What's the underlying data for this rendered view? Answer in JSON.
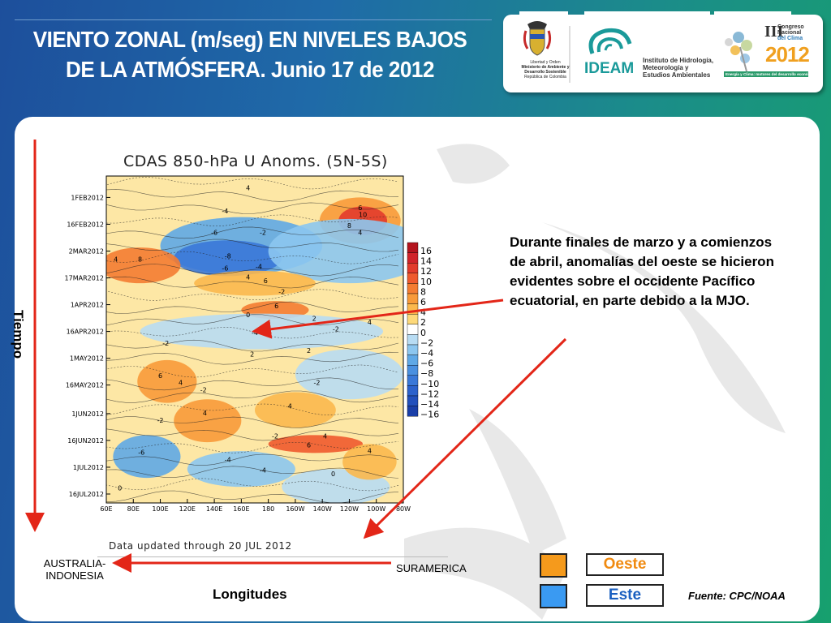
{
  "title_line1": "VIENTO ZONAL (m/seg) EN NIVELES BAJOS",
  "title_line2": "DE LA ATMÓSFERA. Junio 17 de 2012",
  "logos": {
    "ministry": [
      "Libertad y Orden",
      "Ministerio de Ambiente y",
      "Desarrollo Sostenible",
      "República de Colombia"
    ],
    "ideam_name": "IDEAM",
    "ideam_text": [
      "Instituto de Hidrología,",
      "Meteorología y",
      "Estudios Ambientales"
    ],
    "congreso_roman": "III",
    "congreso_text": [
      "Congreso",
      "Nacional",
      "del Clima"
    ],
    "congreso_year": "2012",
    "congreso_slogan": "Energía y Clima: motores del desarrollo económico"
  },
  "annotation": "Durante finales de marzo y a comienzos de abril, anomalías del oeste se hicieron evidentes  sobre el occidente Pacífico ecuatorial, en parte debido a la MJO.",
  "axis_labels": {
    "tiempo": "Tiempo",
    "longitudes": "Longitudes",
    "left_region": "AUSTRALIA-INDONESIA",
    "right_region": "SURAMERICA"
  },
  "legend": {
    "oeste": "Oeste",
    "este": "Este",
    "oeste_color": "#f59a1c",
    "este_color": "#3a9af2"
  },
  "source": "Fuente: CPC/NOAA",
  "chart_data": {
    "type": "heatmap",
    "title": "CDAS 850-hPa U Anoms. (5N-5S)",
    "footer": "Data updated through 20 JUL 2012",
    "x_ticks": [
      "60E",
      "80E",
      "100E",
      "120E",
      "140E",
      "160E",
      "180",
      "160W",
      "140W",
      "120W",
      "100W",
      "80W"
    ],
    "y_ticks": [
      "1FEB2012",
      "16FEB2012",
      "2MAR2012",
      "17MAR2012",
      "1APR2012",
      "16APR2012",
      "1MAY2012",
      "16MAY2012",
      "1JUN2012",
      "16JUN2012",
      "1JUL2012",
      "16JUL2012"
    ],
    "colorbar_levels": [
      "16",
      "14",
      "12",
      "10",
      "8",
      "6",
      "4",
      "2",
      "0",
      "-2",
      "-4",
      "-6",
      "-8",
      "-10",
      "-12",
      "-14",
      "-16"
    ],
    "colorbar_colors": [
      "#b4141e",
      "#d0232a",
      "#e23b2c",
      "#ef5a2e",
      "#f47c32",
      "#f89a3a",
      "#fbb84e",
      "#fdd97a",
      "#ffffff",
      "#b8dcf3",
      "#8cc6ef",
      "#5fa8e6",
      "#4a90e0",
      "#3a78d8",
      "#2c62cc",
      "#2250bc",
      "#1a3fa8"
    ],
    "contour_labels": [
      {
        "lon": 165,
        "date": "2012-01-28",
        "value": "4"
      },
      {
        "lon": 148,
        "date": "2012-02-10",
        "value": "-4"
      },
      {
        "lon": 248,
        "date": "2012-02-08",
        "value": "6"
      },
      {
        "lon": 250,
        "date": "2012-02-12",
        "value": "10"
      },
      {
        "lon": 240,
        "date": "2012-02-18",
        "value": "8"
      },
      {
        "lon": 248,
        "date": "2012-02-22",
        "value": "4"
      },
      {
        "lon": 140,
        "date": "2012-02-22",
        "value": "-6"
      },
      {
        "lon": 176,
        "date": "2012-02-22",
        "value": "-2"
      },
      {
        "lon": 150,
        "date": "2012-03-06",
        "value": "-8"
      },
      {
        "lon": 85,
        "date": "2012-03-08",
        "value": "8"
      },
      {
        "lon": 67,
        "date": "2012-03-08",
        "value": "4"
      },
      {
        "lon": 148,
        "date": "2012-03-13",
        "value": "-6"
      },
      {
        "lon": 173,
        "date": "2012-03-12",
        "value": "-4"
      },
      {
        "lon": 165,
        "date": "2012-03-18",
        "value": "4"
      },
      {
        "lon": 178,
        "date": "2012-03-20",
        "value": "6"
      },
      {
        "lon": 190,
        "date": "2012-03-26",
        "value": "-2"
      },
      {
        "lon": 186,
        "date": "2012-04-03",
        "value": "6"
      },
      {
        "lon": 165,
        "date": "2012-04-08",
        "value": "0"
      },
      {
        "lon": 214,
        "date": "2012-04-10",
        "value": "2"
      },
      {
        "lon": 170,
        "date": "2012-04-18",
        "value": "-4"
      },
      {
        "lon": 230,
        "date": "2012-04-16",
        "value": "-2"
      },
      {
        "lon": 255,
        "date": "2012-04-12",
        "value": "4"
      },
      {
        "lon": 104,
        "date": "2012-04-24",
        "value": "-2"
      },
      {
        "lon": 210,
        "date": "2012-04-28",
        "value": "2"
      },
      {
        "lon": 168,
        "date": "2012-04-30",
        "value": "2"
      },
      {
        "lon": 100,
        "date": "2012-05-12",
        "value": "6"
      },
      {
        "lon": 115,
        "date": "2012-05-16",
        "value": "4"
      },
      {
        "lon": 132,
        "date": "2012-05-20",
        "value": "-2"
      },
      {
        "lon": 216,
        "date": "2012-05-16",
        "value": "-2"
      },
      {
        "lon": 196,
        "date": "2012-05-29",
        "value": "4"
      },
      {
        "lon": 133,
        "date": "2012-06-02",
        "value": "4"
      },
      {
        "lon": 100,
        "date": "2012-06-06",
        "value": "-2"
      },
      {
        "lon": 222,
        "date": "2012-06-15",
        "value": "4"
      },
      {
        "lon": 185,
        "date": "2012-06-15",
        "value": "-2"
      },
      {
        "lon": 210,
        "date": "2012-06-20",
        "value": "6"
      },
      {
        "lon": 86,
        "date": "2012-06-24",
        "value": "-6"
      },
      {
        "lon": 150,
        "date": "2012-06-28",
        "value": "-4"
      },
      {
        "lon": 255,
        "date": "2012-06-23",
        "value": "4"
      },
      {
        "lon": 176,
        "date": "2012-07-04",
        "value": "-4"
      },
      {
        "lon": 228,
        "date": "2012-07-06",
        "value": "0"
      },
      {
        "lon": 70,
        "date": "2012-07-14",
        "value": "0"
      }
    ]
  }
}
